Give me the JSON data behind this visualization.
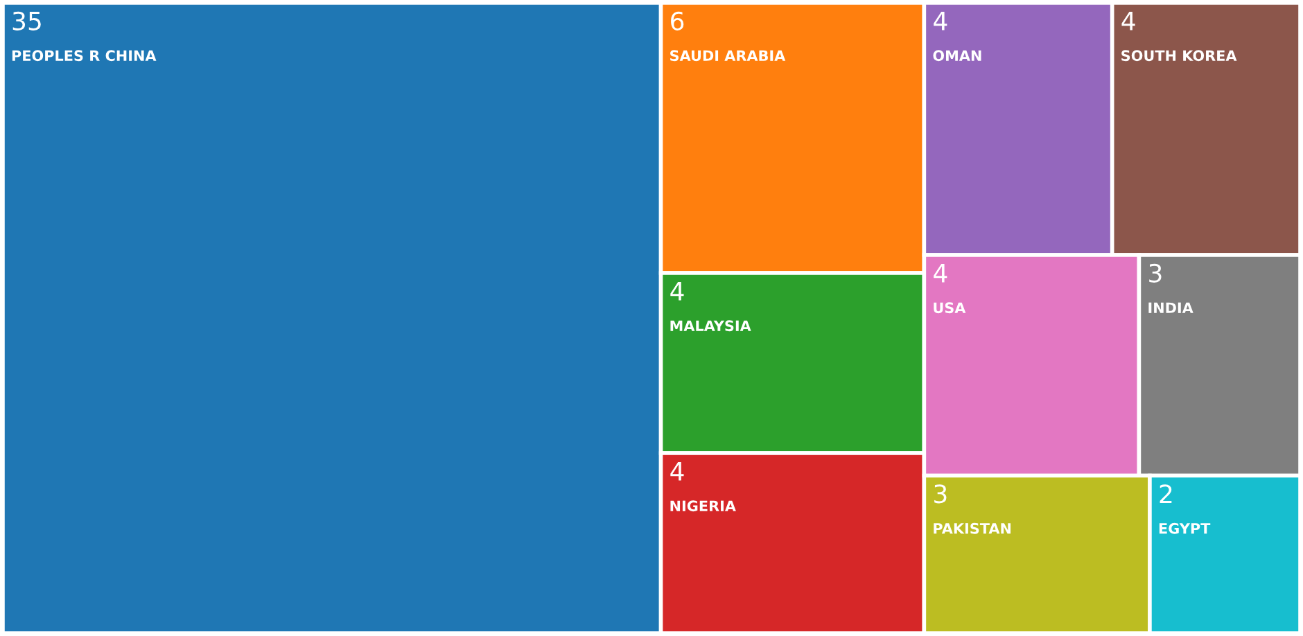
{
  "chart_data": {
    "type": "other",
    "categories": [
      "PEOPLES R CHINA",
      "SAUDI ARABIA",
      "MALAYSIA",
      "NIGERIA",
      "OMAN",
      "SOUTH KOREA",
      "USA",
      "INDIA",
      "PAKISTAN",
      "EGYPT"
    ],
    "values": [
      35,
      6,
      4,
      4,
      4,
      4,
      4,
      3,
      3,
      2
    ],
    "colors": [
      "#1f77b4",
      "#ff7f0e",
      "#2ca02c",
      "#d62728",
      "#9467bd",
      "#8c564b",
      "#e377c2",
      "#7f7f7f",
      "#bcbd22",
      "#17becf"
    ],
    "data_labels": true
  }
}
